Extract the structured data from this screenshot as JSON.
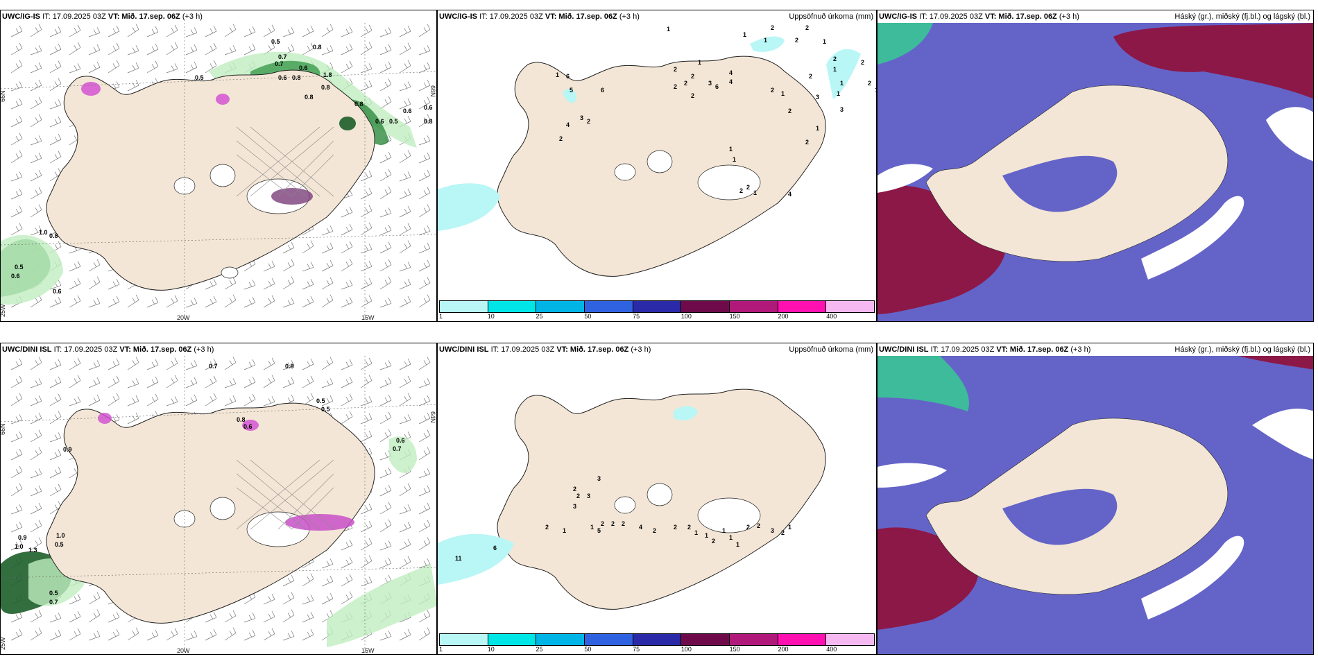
{
  "rows": [
    {
      "model": "UWC/IG-IS",
      "init": "IT: 17.09.2025 03Z",
      "valid": "VT: Mið. 17.sep. 06Z",
      "lead": "(+3 h)",
      "wind_labels": [
        "0.5",
        "0.8",
        "0.7",
        "0.7",
        "0.5",
        "0.6",
        "0.6",
        "0.8",
        "1.8",
        "0.8",
        "0.8",
        "0.8",
        "0.6",
        "0.5",
        "0.6",
        "0.6",
        "0.8",
        "1.0",
        "0.8",
        "0.5",
        "0.6",
        "0.6"
      ],
      "precip_labels": [
        "1",
        "1",
        "2",
        "2",
        "1",
        "2",
        "2",
        "1",
        "2",
        "2",
        "3",
        "6",
        "4",
        "2",
        "2",
        "4",
        "2",
        "1",
        "2",
        "2",
        "1",
        "1",
        "3",
        "3",
        "1",
        "2",
        "1",
        "1",
        "2",
        "2",
        "1",
        "4",
        "1",
        "2",
        "1",
        "2",
        "2",
        "1",
        "1",
        "6",
        "5",
        "6",
        "3",
        "4",
        "2",
        "2"
      ]
    },
    {
      "model": "UWC/DINI ISL",
      "init": "IT: 17.09.2025 03Z",
      "valid": "VT: Mið. 17.sep. 06Z",
      "lead": "(+3 h)",
      "wind_labels": [
        "0.7",
        "0.8",
        "0.5",
        "0.5",
        "0.9",
        "0.8",
        "0.6",
        "0.6",
        "0.7",
        "0.9",
        "1.0",
        "1.3",
        "1.0",
        "0.5",
        "0.5",
        "0.7"
      ],
      "precip_labels": [
        "3",
        "2",
        "2",
        "3",
        "3",
        "5",
        "2",
        "1",
        "1",
        "2",
        "2",
        "2",
        "4",
        "2",
        "2",
        "2",
        "1",
        "1",
        "2",
        "1",
        "1",
        "1",
        "2",
        "2",
        "3",
        "2",
        "1",
        "6",
        "11"
      ]
    }
  ],
  "panel_titles": {
    "precip": "Uppsöfnuð úrkoma (mm)",
    "clouds": "Háský (gr.), miðský (fj.bl.) og lágský (bl.)"
  },
  "axis_labels": {
    "lat_66": "66N",
    "lat_64": "64N",
    "lon_25": "25W",
    "lon_20": "20W",
    "lon_15": "15W"
  },
  "colorbar": {
    "ticks": [
      "1",
      "10",
      "25",
      "50",
      "75",
      "100",
      "150",
      "200",
      "400"
    ],
    "colors": [
      "#b9f6f6",
      "#00e6e6",
      "#00b4e6",
      "#2f62e0",
      "#2a2aa8",
      "#6e0a4a",
      "#b0187a",
      "#ff10b0",
      "#f5b8f0"
    ]
  },
  "colors": {
    "land": "#f3e6d6",
    "cloud_high": "#8c1848",
    "cloud_mid": "#6464c8",
    "cloud_low": "#3dbb9a",
    "precip_light": "#b9f6f6",
    "wind_green": "#2e8b3e"
  }
}
